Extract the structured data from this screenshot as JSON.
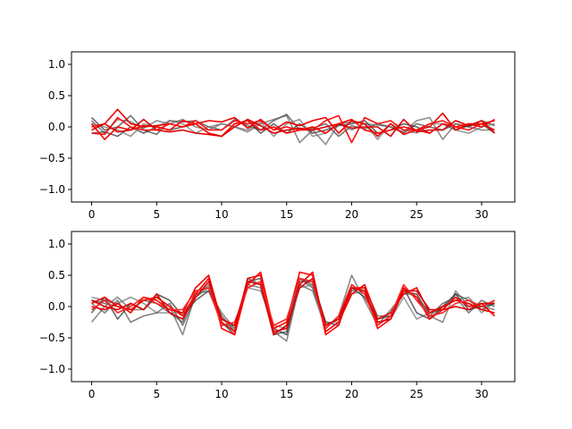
{
  "chart_data": [
    {
      "type": "line",
      "xlim": [
        -1.55,
        32.55
      ],
      "ylim": [
        -1.2,
        1.2
      ],
      "xticks": [
        0,
        5,
        10,
        15,
        20,
        25,
        30
      ],
      "xtick_labels": [
        "0",
        "5",
        "10",
        "15",
        "20",
        "25",
        "30"
      ],
      "yticks": [
        1.0,
        0.5,
        0.0,
        -0.5,
        -1.0
      ],
      "ytick_labels": [
        "1.0",
        "0.5",
        "0.0",
        "−0.5",
        "−1.0"
      ],
      "grid": false,
      "x": [
        0,
        1,
        2,
        3,
        4,
        5,
        6,
        7,
        8,
        9,
        10,
        11,
        12,
        13,
        14,
        15,
        16,
        17,
        18,
        19,
        20,
        21,
        22,
        23,
        24,
        25,
        26,
        27,
        28,
        29,
        30,
        31
      ],
      "series": [
        {
          "color": "#444444",
          "values": [
            0.15,
            -0.05,
            0.0,
            0.18,
            -0.05,
            -0.12,
            0.1,
            0.08,
            0.1,
            0.0,
            -0.05,
            0.12,
            0.02,
            -0.05,
            0.1,
            0.2,
            -0.05,
            -0.02,
            0.05,
            -0.15,
            0.02,
            -0.03,
            0.05,
            0.0,
            -0.1,
            0.05,
            0.0,
            -0.05,
            0.05,
            0.0,
            0.1,
            0.02
          ]
        },
        {
          "color": "#666666",
          "values": [
            0.1,
            -0.1,
            0.12,
            0.08,
            -0.02,
            0.1,
            0.05,
            0.12,
            0.0,
            -0.05,
            0.05,
            0.0,
            -0.08,
            0.05,
            0.12,
            0.18,
            -0.25,
            -0.05,
            -0.28,
            0.05,
            0.08,
            0.05,
            0.03,
            0.0,
            -0.08,
            0.1,
            0.15,
            -0.2,
            0.05,
            0.0,
            -0.05,
            -0.05
          ]
        },
        {
          "color": "#333333",
          "values": [
            -0.1,
            -0.08,
            -0.15,
            0.0,
            -0.1,
            0.0,
            -0.05,
            0.0,
            0.05,
            -0.1,
            -0.15,
            0.05,
            0.1,
            -0.1,
            0.05,
            -0.1,
            0.05,
            -0.1,
            -0.05,
            0.02,
            0.05,
            0.1,
            -0.1,
            -0.05,
            0.05,
            0.0,
            -0.1,
            0.05,
            -0.05,
            0.02,
            0.05,
            -0.1
          ]
        },
        {
          "color": "#777777",
          "values": [
            0.05,
            0.0,
            -0.05,
            -0.15,
            0.05,
            0.0,
            0.1,
            0.05,
            -0.1,
            0.0,
            0.05,
            0.0,
            -0.05,
            0.08,
            -0.15,
            0.05,
            0.12,
            -0.15,
            -0.1,
            0.05,
            -0.05,
            0.05,
            -0.2,
            0.05,
            -0.05,
            -0.1,
            0.05,
            0.05,
            -0.05,
            -0.1,
            0.0,
            0.05
          ]
        },
        {
          "color": "#ff0000",
          "values": [
            0.05,
            -0.2,
            0.0,
            -0.05,
            0.02,
            0.0,
            -0.05,
            0.1,
            0.05,
            -0.1,
            -0.15,
            0.05,
            0.1,
            -0.05,
            0.0,
            -0.1,
            -0.05,
            0.0,
            -0.1,
            0.05,
            0.12,
            -0.05,
            -0.1,
            -0.05,
            0.0,
            -0.05,
            -0.1,
            0.05,
            0.0,
            0.05,
            0.05,
            0.1
          ]
        },
        {
          "color": "#ee0000",
          "values": [
            0.0,
            0.05,
            0.28,
            0.05,
            0.0,
            0.02,
            0.05,
            0.0,
            0.05,
            0.1,
            0.08,
            0.15,
            -0.02,
            0.12,
            -0.05,
            0.08,
            0.02,
            0.1,
            0.15,
            -0.1,
            0.1,
            0.05,
            -0.15,
            0.05,
            -0.12,
            -0.05,
            0.0,
            0.22,
            -0.05,
            0.05,
            0.0,
            0.12
          ]
        },
        {
          "color": "#ff1111",
          "values": [
            -0.1,
            -0.12,
            0.15,
            0.0,
            -0.05,
            -0.05,
            0.05,
            0.0,
            0.1,
            -0.05,
            -0.05,
            0.1,
            0.05,
            0.1,
            -0.05,
            0.0,
            -0.05,
            -0.05,
            0.1,
            0.18,
            -0.25,
            0.15,
            0.05,
            0.1,
            -0.05,
            -0.05,
            0.05,
            0.1,
            0.0,
            -0.05,
            0.05,
            -0.05
          ]
        },
        {
          "color": "#dd0000",
          "values": [
            -0.05,
            0.05,
            -0.08,
            -0.05,
            0.12,
            -0.05,
            -0.08,
            -0.05,
            -0.1,
            -0.12,
            -0.15,
            0.0,
            0.12,
            0.02,
            -0.1,
            -0.05,
            -0.02,
            -0.05,
            0.0,
            0.05,
            -0.02,
            0.0,
            0.0,
            -0.15,
            0.12,
            -0.08,
            -0.05,
            -0.05,
            0.1,
            0.02,
            0.1,
            -0.1
          ]
        }
      ]
    },
    {
      "type": "line",
      "xlim": [
        -1.55,
        32.55
      ],
      "ylim": [
        -1.2,
        1.2
      ],
      "xticks": [
        0,
        5,
        10,
        15,
        20,
        25,
        30
      ],
      "xtick_labels": [
        "0",
        "5",
        "10",
        "15",
        "20",
        "25",
        "30"
      ],
      "yticks": [
        1.0,
        0.5,
        0.0,
        -0.5,
        -1.0
      ],
      "ytick_labels": [
        "1.0",
        "0.5",
        "0.0",
        "−0.5",
        "−1.0"
      ],
      "grid": false,
      "x": [
        0,
        1,
        2,
        3,
        4,
        5,
        6,
        7,
        8,
        9,
        10,
        11,
        12,
        13,
        14,
        15,
        16,
        17,
        18,
        19,
        20,
        21,
        22,
        23,
        24,
        25,
        26,
        27,
        28,
        29,
        30,
        31
      ],
      "series": [
        {
          "color": "#444444",
          "values": [
            0.1,
            0.05,
            0.0,
            -0.05,
            0.1,
            0.05,
            -0.1,
            -0.25,
            0.25,
            0.3,
            -0.15,
            -0.4,
            0.45,
            0.35,
            -0.45,
            -0.4,
            0.45,
            0.3,
            -0.3,
            -0.2,
            0.35,
            0.2,
            -0.2,
            -0.1,
            0.25,
            0.15,
            -0.1,
            -0.05,
            0.2,
            0.1,
            -0.05,
            0.05
          ]
        },
        {
          "color": "#666666",
          "values": [
            -0.25,
            0.0,
            0.15,
            -0.05,
            -0.05,
            0.15,
            0.0,
            -0.45,
            0.2,
            0.25,
            -0.1,
            -0.35,
            0.35,
            0.3,
            -0.4,
            -0.55,
            0.35,
            0.25,
            -0.35,
            -0.15,
            0.5,
            0.1,
            -0.3,
            -0.05,
            0.2,
            0.2,
            -0.15,
            -0.25,
            0.25,
            0.0,
            0.0,
            -0.05
          ]
        },
        {
          "color": "#777777",
          "values": [
            0.15,
            0.1,
            0.05,
            0.15,
            0.05,
            -0.1,
            -0.1,
            -0.1,
            0.15,
            0.3,
            -0.2,
            -0.35,
            0.3,
            0.25,
            -0.3,
            -0.35,
            0.3,
            0.35,
            -0.25,
            -0.25,
            0.2,
            0.25,
            -0.25,
            -0.2,
            0.15,
            -0.2,
            -0.1,
            0.0,
            0.1,
            0.15,
            -0.1,
            0.1
          ]
        },
        {
          "color": "#333333",
          "values": [
            -0.1,
            0.15,
            -0.2,
            0.05,
            -0.05,
            0.2,
            0.1,
            -0.15,
            0.1,
            0.25,
            -0.25,
            -0.45,
            0.4,
            0.45,
            -0.35,
            -0.45,
            0.4,
            0.4,
            -0.25,
            -0.3,
            0.3,
            0.15,
            -0.2,
            -0.15,
            0.3,
            -0.1,
            -0.2,
            0.0,
            0.2,
            -0.05,
            0.0,
            0.05
          ]
        },
        {
          "color": "#555555",
          "values": [
            0.05,
            -0.1,
            0.1,
            -0.25,
            -0.15,
            -0.1,
            0.05,
            -0.3,
            0.15,
            0.35,
            -0.3,
            -0.3,
            0.3,
            0.4,
            -0.45,
            -0.3,
            0.45,
            0.35,
            -0.3,
            -0.2,
            0.25,
            0.3,
            -0.15,
            -0.15,
            0.25,
            0.2,
            -0.15,
            0.05,
            0.15,
            -0.1,
            0.1,
            0.0
          ]
        },
        {
          "color": "#ff0000",
          "values": [
            0.05,
            0.15,
            0.0,
            -0.05,
            0.1,
            0.15,
            0.0,
            -0.15,
            0.2,
            0.45,
            -0.35,
            -0.45,
            0.35,
            0.55,
            -0.35,
            -0.25,
            0.55,
            0.5,
            -0.45,
            -0.3,
            0.3,
            0.3,
            -0.35,
            -0.2,
            0.3,
            0.15,
            -0.2,
            -0.05,
            0.15,
            0.0,
            0.05,
            -0.15
          ]
        },
        {
          "color": "#ee0000",
          "values": [
            0.0,
            -0.05,
            0.05,
            -0.1,
            0.15,
            0.1,
            -0.05,
            -0.1,
            0.3,
            0.5,
            -0.25,
            -0.4,
            0.45,
            0.5,
            -0.4,
            -0.35,
            0.35,
            0.55,
            -0.4,
            -0.25,
            0.2,
            0.35,
            -0.2,
            -0.1,
            0.2,
            0.3,
            -0.1,
            0.0,
            0.1,
            0.05,
            -0.05,
            -0.1
          ]
        },
        {
          "color": "#ff2222",
          "values": [
            -0.05,
            0.1,
            -0.1,
            0.0,
            0.15,
            0.05,
            -0.05,
            -0.05,
            0.25,
            0.3,
            -0.3,
            -0.25,
            0.3,
            0.4,
            -0.3,
            -0.2,
            0.45,
            0.4,
            -0.35,
            -0.15,
            0.35,
            0.2,
            -0.3,
            -0.15,
            0.35,
            0.1,
            -0.15,
            -0.1,
            0.05,
            0.1,
            0.0,
            0.1
          ]
        },
        {
          "color": "#dd0000",
          "values": [
            0.1,
            0.0,
            -0.05,
            0.05,
            -0.05,
            0.2,
            -0.1,
            -0.2,
            0.15,
            0.4,
            -0.2,
            -0.3,
            0.4,
            0.35,
            -0.45,
            -0.3,
            0.3,
            0.45,
            -0.3,
            -0.2,
            0.3,
            0.25,
            -0.25,
            -0.2,
            0.25,
            0.25,
            -0.05,
            -0.05,
            0.0,
            -0.05,
            0.05,
            0.05
          ]
        }
      ]
    }
  ]
}
